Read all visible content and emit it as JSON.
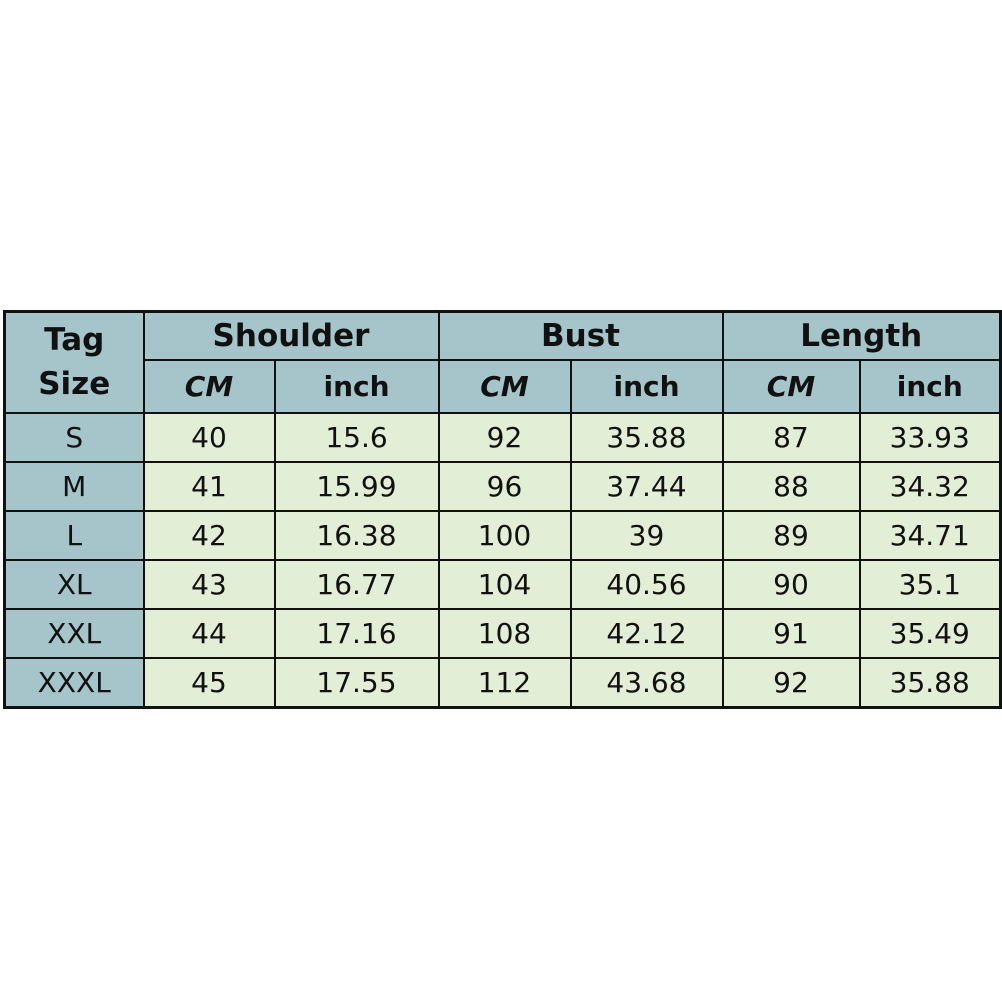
{
  "header": {
    "tag_size": [
      "Tag",
      "Size"
    ],
    "groups": [
      "Shoulder",
      "Bust",
      "Length"
    ],
    "units": [
      "CM",
      "inch",
      "CM",
      "inch",
      "CM",
      "inch"
    ]
  },
  "rows": [
    {
      "size": "S",
      "values": [
        "40",
        "15.6",
        "92",
        "35.88",
        "87",
        "33.93"
      ]
    },
    {
      "size": "M",
      "values": [
        "41",
        "15.99",
        "96",
        "37.44",
        "88",
        "34.32"
      ]
    },
    {
      "size": "L",
      "values": [
        "42",
        "16.38",
        "100",
        "39",
        "89",
        "34.71"
      ]
    },
    {
      "size": "XL",
      "values": [
        "43",
        "16.77",
        "104",
        "40.56",
        "90",
        "35.1"
      ]
    },
    {
      "size": "XXL",
      "values": [
        "44",
        "17.16",
        "108",
        "42.12",
        "91",
        "35.49"
      ]
    },
    {
      "size": "XXXL",
      "values": [
        "45",
        "17.55",
        "112",
        "43.68",
        "92",
        "35.88"
      ]
    }
  ],
  "colors": {
    "header_bg": "#a6c5cb",
    "cell_bg": "#e2eed6",
    "border": "#111111"
  }
}
